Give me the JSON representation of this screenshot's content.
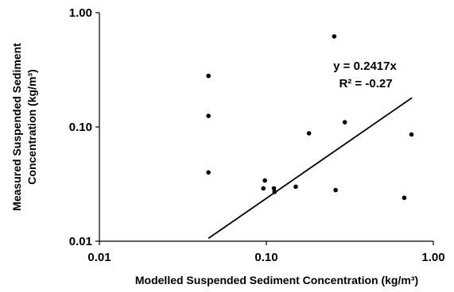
{
  "chart_data": {
    "type": "scatter",
    "title": "",
    "xlabel": "Modelled Suspended Sediment Concentration (kg/m³)",
    "ylabel_lines": [
      "Measured Suspended Sediment",
      "Concentration (kg/m³)"
    ],
    "xscale": "log",
    "yscale": "log",
    "xlim": [
      0.01,
      1.0
    ],
    "ylim": [
      0.01,
      1.0
    ],
    "xticks": [
      0.01,
      0.1,
      1.0
    ],
    "xtick_labels": [
      "0.01",
      "0.10",
      "1.00"
    ],
    "yticks": [
      0.01,
      0.1,
      1.0
    ],
    "ytick_labels": [
      "0.01",
      "0.10",
      "1.00"
    ],
    "grid": false,
    "points": [
      {
        "x": 0.045,
        "y": 0.28
      },
      {
        "x": 0.045,
        "y": 0.125
      },
      {
        "x": 0.045,
        "y": 0.04
      },
      {
        "x": 0.098,
        "y": 0.034
      },
      {
        "x": 0.096,
        "y": 0.029
      },
      {
        "x": 0.111,
        "y": 0.029
      },
      {
        "x": 0.112,
        "y": 0.027
      },
      {
        "x": 0.15,
        "y": 0.03
      },
      {
        "x": 0.18,
        "y": 0.088
      },
      {
        "x": 0.255,
        "y": 0.62
      },
      {
        "x": 0.26,
        "y": 0.028
      },
      {
        "x": 0.295,
        "y": 0.11
      },
      {
        "x": 0.67,
        "y": 0.024
      },
      {
        "x": 0.74,
        "y": 0.086
      }
    ],
    "trendline": {
      "x": [
        0.045,
        0.745
      ],
      "y": [
        0.0106,
        0.18
      ]
    },
    "annotations": [
      "y = 0.2417x",
      "R² = -0.27"
    ]
  }
}
